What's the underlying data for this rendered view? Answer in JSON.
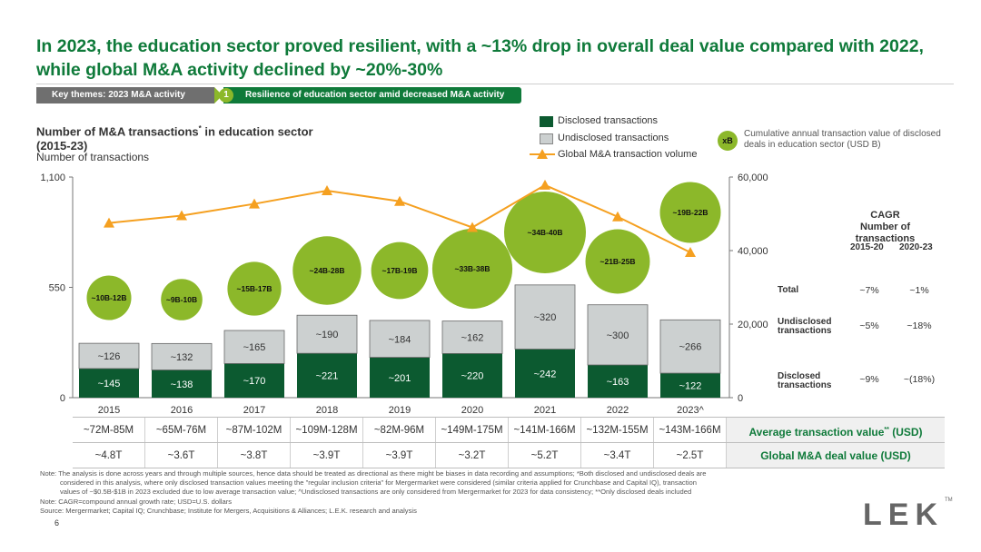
{
  "title": "In 2023, the education sector proved resilient, with a ~13% drop in overall deal value compared with 2022, while global M&A activity declined by ~20%-30%",
  "breadcrumb": {
    "theme": "Key themes: 2023 M&A activity",
    "step_number": "1",
    "step_label": "Resilience of education sector amid decreased M&A activity"
  },
  "chart_title_main": "Number of M&A transactions",
  "chart_title_mark": "*",
  "chart_title_rest": " in education sector",
  "chart_title_years": "(2015-23)",
  "chart_subtitle": "Number of transactions",
  "legend": {
    "disclosed": "Disclosed transactions",
    "undisclosed": "Undisclosed transactions",
    "global": "Global M&A transaction volume",
    "bubble_symbol": "xB",
    "bubble_desc": "Cumulative annual transaction value of disclosed deals in education sector (USD B)"
  },
  "colors": {
    "disclosed": "#0c5a30",
    "undisclosed": "#ccd0d0",
    "line": "#f5a020",
    "bubble": "#8cb82a",
    "title_green": "#0f7a3a"
  },
  "chart_data": {
    "type": "bar",
    "categories": [
      "2015",
      "2016",
      "2017",
      "2018",
      "2019",
      "2020",
      "2021",
      "2022",
      "2023^"
    ],
    "series": [
      {
        "name": "Disclosed transactions",
        "values": [
          145,
          138,
          170,
          221,
          201,
          220,
          242,
          163,
          122
        ],
        "labels": [
          "~145",
          "~138",
          "~170",
          "~221",
          "~201",
          "~220",
          "~242",
          "~163",
          "~122"
        ]
      },
      {
        "name": "Undisclosed transactions",
        "values": [
          126,
          132,
          165,
          190,
          184,
          162,
          320,
          300,
          266
        ],
        "labels": [
          "~126",
          "~132",
          "~165",
          "~190",
          "~184",
          "~162",
          "~320",
          "~300",
          "~266"
        ]
      },
      {
        "name": "Global M&A transaction volume",
        "axis": "right",
        "values": [
          47500,
          49500,
          52700,
          56300,
          53400,
          46300,
          57800,
          49200,
          39500
        ]
      }
    ],
    "bubbles": {
      "labels": [
        "~10B-12B",
        "~9B-10B",
        "~15B-17B",
        "~24B-28B",
        "~17B-19B",
        "~33B-38B",
        "~34B-40B",
        "~21B-25B",
        "~19B-22B"
      ],
      "values": [
        11,
        9.5,
        16,
        26,
        18,
        35.5,
        37,
        23,
        20.5
      ]
    },
    "y_left": {
      "min": 0,
      "max": 1100,
      "ticks": [
        "0",
        "550",
        "1,100"
      ]
    },
    "y_right": {
      "min": 0,
      "max": 60000,
      "ticks": [
        "0",
        "20,000",
        "40,000",
        "60,000"
      ]
    }
  },
  "cagr": {
    "title_line1": "CAGR",
    "title_line2": "Number of transactions",
    "col1": "2015-20",
    "col2": "2020-23",
    "rows": [
      {
        "label": "Total",
        "v1": "~7%",
        "v2": "~1%"
      },
      {
        "label": "Undisclosed transactions",
        "v1": "~5%",
        "v2": "~18%"
      },
      {
        "label": "Disclosed transactions",
        "v1": "~9%",
        "v2": "~(18%)"
      }
    ]
  },
  "table": {
    "avg_values": [
      "~72M-85M",
      "~65M-76M",
      "~87M-102M",
      "~109M-128M",
      "~82M-96M",
      "~149M-175M",
      "~141M-166M",
      "~132M-155M",
      "~143M-166M"
    ],
    "avg_label": "Average transaction value",
    "avg_mark": "**",
    "avg_unit": " (USD)",
    "global_values": [
      "~4.8T",
      "~3.6T",
      "~3.8T",
      "~3.9T",
      "~3.9T",
      "~3.2T",
      "~5.2T",
      "~3.4T",
      "~2.5T"
    ],
    "global_label": "Global M&A deal value (USD)"
  },
  "notes": {
    "note1": "Note: The analysis is done across years and through multiple sources, hence data should be treated as directional as there might be biases in data recording and assumptions; *Both disclosed and undisclosed deals are",
    "note1b": "considered in this analysis, where only disclosed transaction values meeting the \"regular inclusion criteria\" for Mergermarket were considered (similar criteria applied for Crunchbase and Capital IQ), transaction",
    "note1c": "values of ~$0.5B-$1B in 2023 excluded due to low average transaction value; ^Undisclosed transactions are only considered from Mergermarket for 2023 for data consistency; **Only disclosed deals included",
    "note2": "Note: CAGR=compound annual growth rate; USD=U.S. dollars",
    "source": "Source: Mergermarket; Capital IQ; Crunchbase; Institute for Mergers, Acquisitions & Alliances; L.E.K. research and analysis"
  },
  "page_number": "6",
  "logo": "LEK",
  "logo_tm": "TM"
}
